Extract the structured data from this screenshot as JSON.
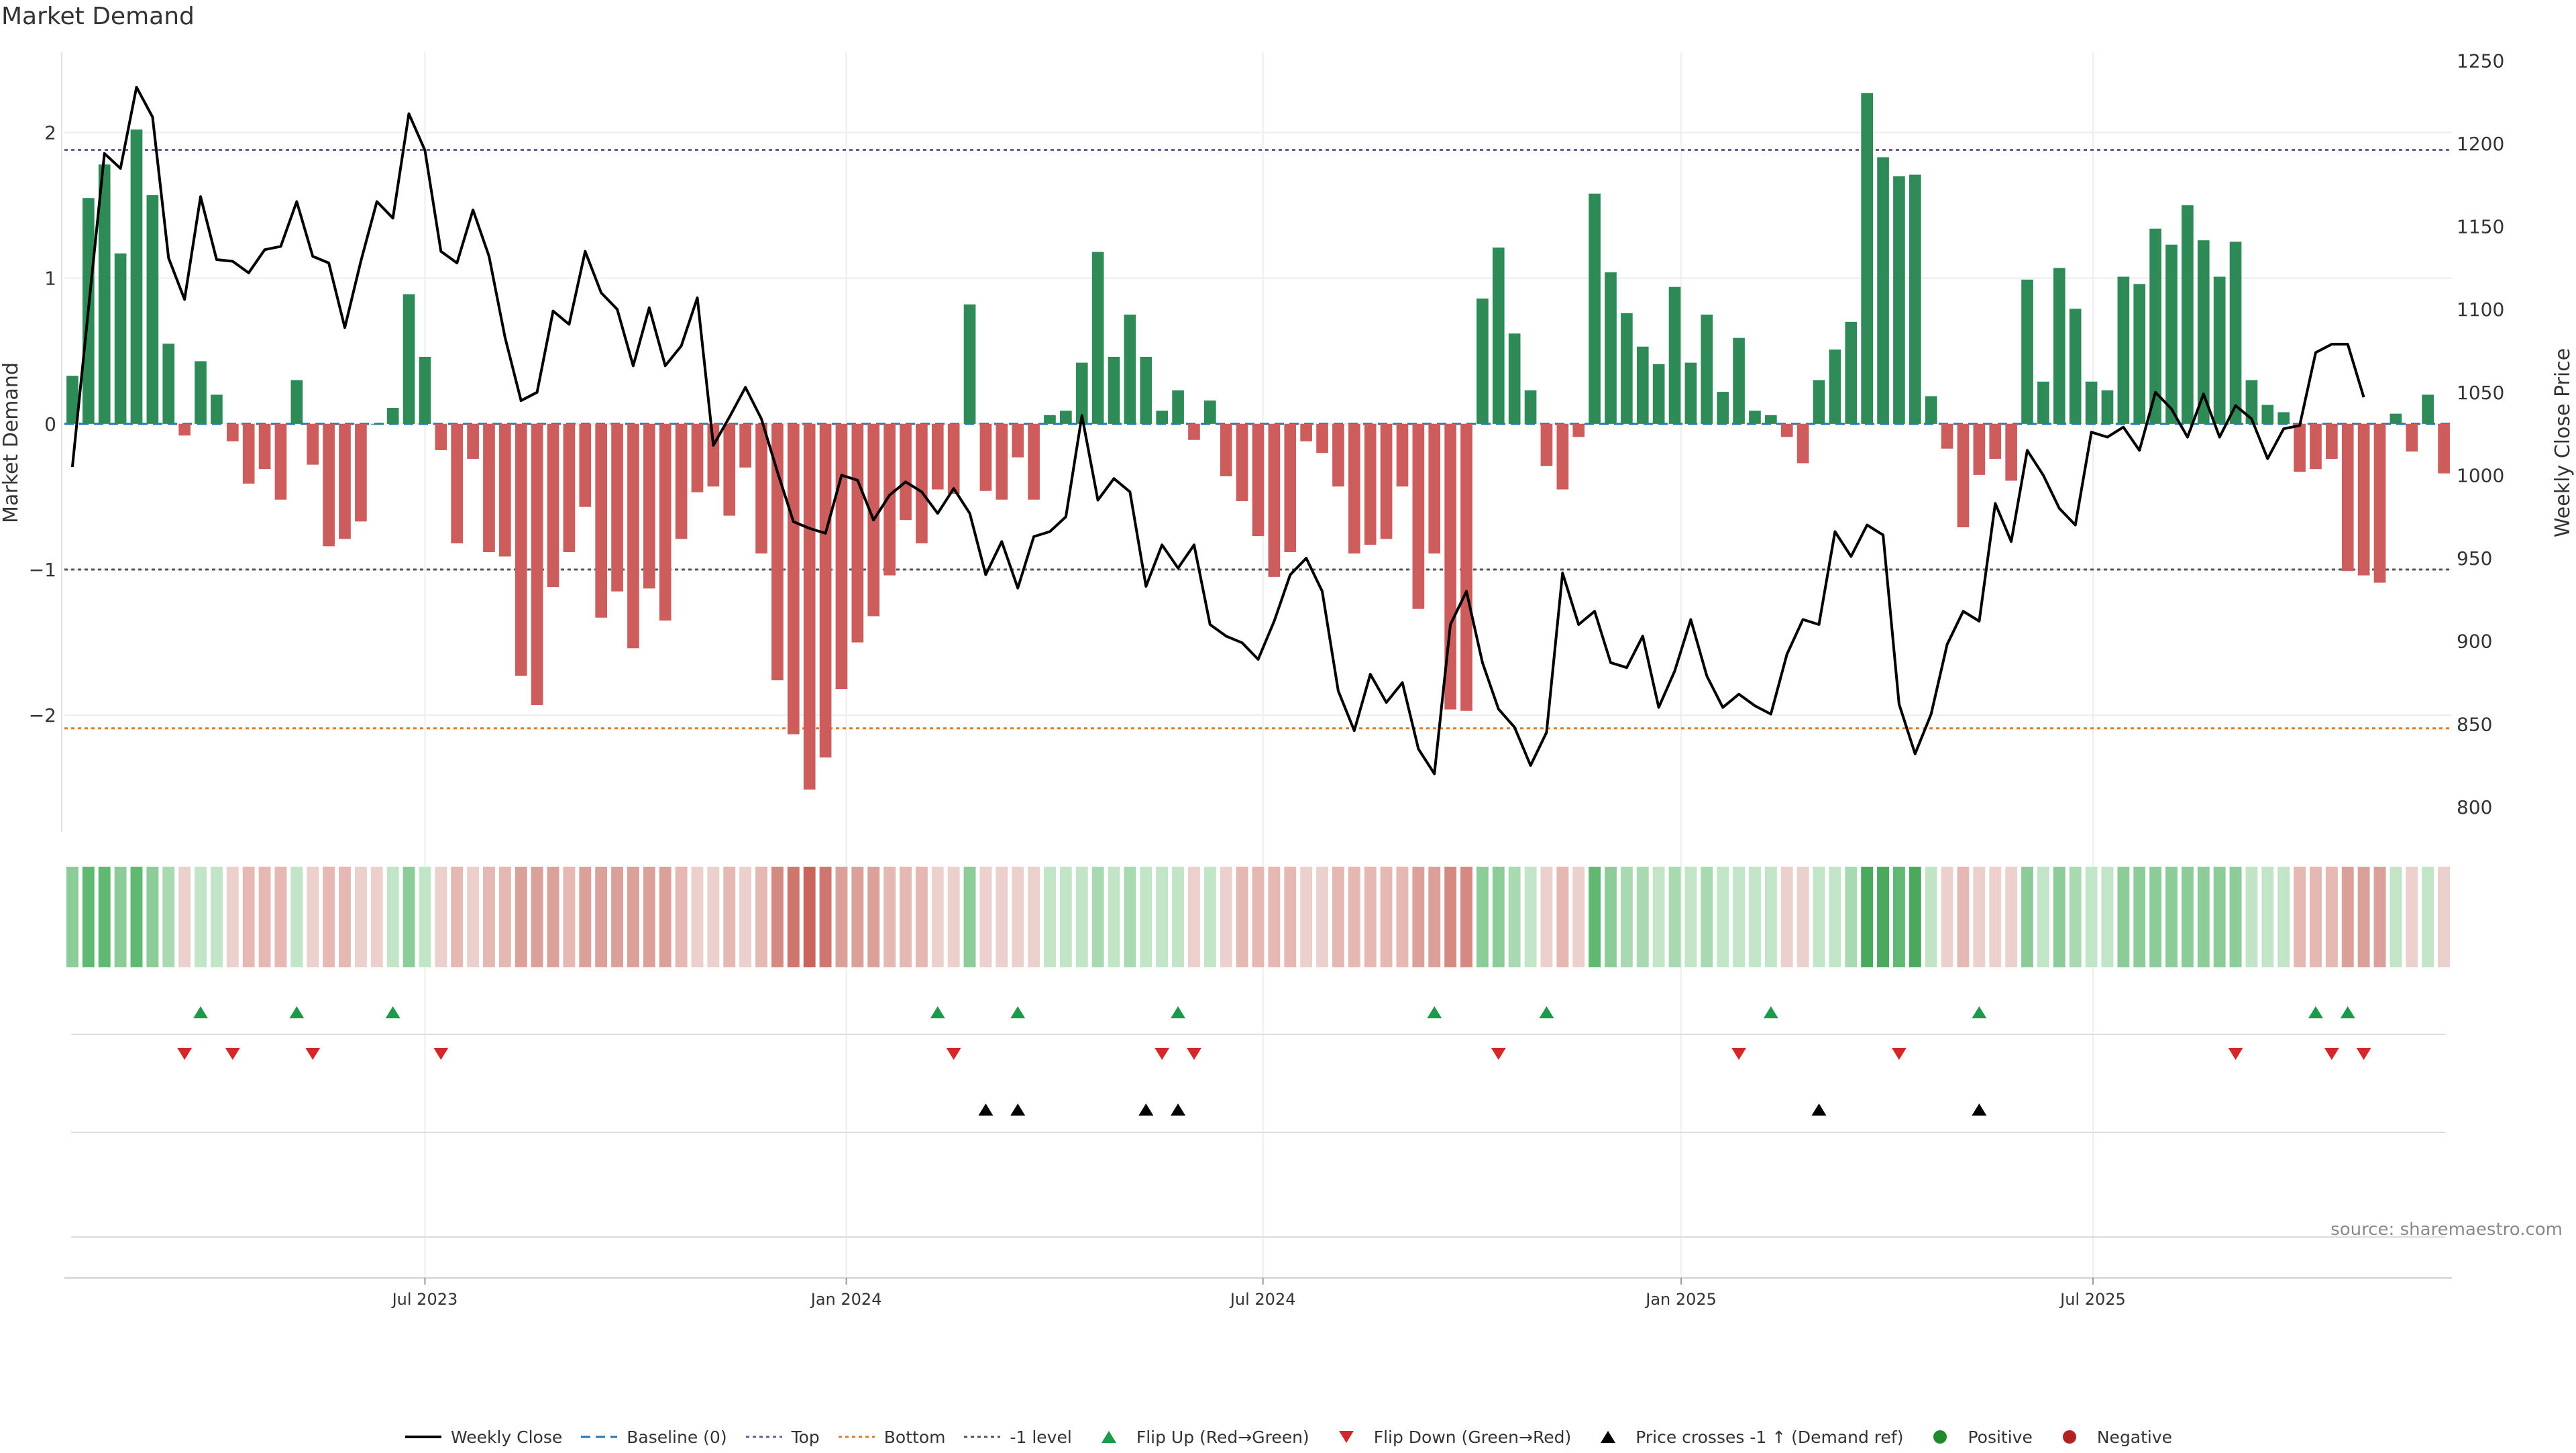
{
  "title": "Market Demand",
  "source": "source: sharemaestro.com",
  "colors": {
    "positive": "#2e8b57",
    "negative": "#cd5c5c",
    "price": "#000000",
    "top": "#6b5b9a",
    "bottom": "#e07b26",
    "minus1": "#555555",
    "baseline": "#1f77b4",
    "flip_up": "#1a9a4a",
    "flip_down": "#d62728",
    "cross": "#000000",
    "negative_dot": "#b22222",
    "positive_dot": "#1f8a2a"
  },
  "chart_data": {
    "type": "bar",
    "ylabel": "Market Demand",
    "y2label": "Weekly Close Price",
    "ylim": [
      -2.8,
      2.55
    ],
    "y2lim": [
      785,
      1255
    ],
    "yticks": [
      -2,
      -1,
      0,
      1,
      2
    ],
    "yticklabels": [
      "−2",
      "−1",
      "0",
      "1",
      "2"
    ],
    "y2ticks": [
      800,
      850,
      900,
      950,
      1000,
      1050,
      1100,
      1150,
      1200,
      1250
    ],
    "levels": {
      "top": 1.88,
      "bottom": -2.09,
      "minus1": -1.0,
      "baseline": 0
    },
    "x_ticks": [
      {
        "label": "Jul 2023",
        "index": 22
      },
      {
        "label": "Jan 2024",
        "index": 48.3
      },
      {
        "label": "Jul 2024",
        "index": 74.3
      },
      {
        "label": "Jan 2025",
        "index": 100.4
      },
      {
        "label": "Jul 2025",
        "index": 126.1
      }
    ],
    "demand": [
      0.33,
      1.55,
      1.78,
      1.17,
      2.02,
      1.57,
      0.55,
      -0.08,
      0.43,
      0.2,
      -0.12,
      -0.41,
      -0.31,
      -0.52,
      0.3,
      -0.28,
      -0.84,
      -0.79,
      -0.67,
      0.0,
      0.11,
      0.89,
      0.46,
      -0.18,
      -0.82,
      -0.24,
      -0.88,
      -0.91,
      -1.73,
      -1.93,
      -1.12,
      -0.88,
      -0.57,
      -1.33,
      -1.15,
      -1.54,
      -1.13,
      -1.35,
      -0.79,
      -0.47,
      -0.43,
      -0.63,
      -0.3,
      -0.89,
      -1.76,
      -2.13,
      -2.51,
      -2.29,
      -1.82,
      -1.5,
      -1.32,
      -1.04,
      -0.66,
      -0.82,
      -0.45,
      -0.48,
      0.82,
      -0.46,
      -0.52,
      -0.23,
      -0.52,
      0.06,
      0.09,
      0.42,
      1.18,
      0.46,
      0.75,
      0.46,
      0.09,
      0.23,
      -0.11,
      0.16,
      -0.36,
      -0.53,
      -0.77,
      -1.05,
      -0.88,
      -0.12,
      -0.2,
      -0.43,
      -0.89,
      -0.83,
      -0.79,
      -0.43,
      -1.27,
      -0.89,
      -1.96,
      -1.97,
      0.86,
      1.21,
      0.62,
      0.23,
      -0.29,
      -0.45,
      -0.09,
      1.58,
      1.04,
      0.76,
      0.53,
      0.41,
      0.94,
      0.42,
      0.75,
      0.22,
      0.59,
      0.09,
      0.06,
      -0.09,
      -0.27,
      0.3,
      0.51,
      0.7,
      2.27,
      1.83,
      1.7,
      1.71,
      0.19,
      -0.17,
      -0.71,
      -0.35,
      -0.24,
      -0.39,
      0.99,
      0.29,
      1.07,
      0.79,
      0.29,
      0.23,
      1.01,
      0.96,
      1.34,
      1.23,
      1.5,
      1.26,
      1.01,
      1.25,
      0.3,
      0.13,
      0.08,
      -0.33,
      -0.31,
      -0.24,
      -1.01,
      -1.04,
      -1.09,
      0.07,
      -0.19,
      0.2,
      -0.34
    ],
    "price": [
      1005,
      1100,
      1194,
      1185,
      1234,
      1216,
      1131,
      1106,
      1168,
      1130,
      1129,
      1122,
      1136,
      1138,
      1165,
      1132,
      1128,
      1089,
      1129,
      1165,
      1155,
      1218,
      1196,
      1135,
      1128,
      1160,
      1132,
      1083,
      1045,
      1050,
      1099,
      1091,
      1135,
      1110,
      1100,
      1066,
      1101,
      1066,
      1078,
      1107,
      1018,
      1035,
      1053,
      1034,
      1002,
      972,
      968,
      965,
      1000,
      997,
      973,
      988,
      996,
      990,
      977,
      992,
      977,
      940,
      960,
      932,
      963,
      966,
      975,
      1036,
      985,
      998,
      990,
      933,
      958,
      944,
      958,
      910,
      903,
      899,
      889,
      912,
      940,
      950,
      930,
      870,
      846,
      880,
      863,
      875,
      835,
      820,
      910,
      930,
      887,
      859,
      848,
      825,
      845,
      941,
      910,
      918,
      887,
      884,
      903,
      860,
      882,
      913,
      879,
      860,
      868,
      861,
      856,
      892,
      913,
      910,
      966,
      951,
      970,
      964,
      862,
      832,
      856,
      898,
      918,
      912,
      983,
      960,
      1015,
      1000,
      980,
      970,
      1026,
      1023,
      1029,
      1015,
      1050,
      1040,
      1023,
      1049,
      1023,
      1042,
      1034,
      1010,
      1028,
      1030,
      1074,
      1079,
      1079,
      1047
    ],
    "heat_colors": [
      "#8ccc99",
      "#61b873",
      "#61b873",
      "#8ccc99",
      "#61b873",
      "#8ccc99",
      "#a9d9b1",
      "#ecd0cd",
      "#c2e5c7",
      "#c2e5c7",
      "#ecd0cd",
      "#e5b8b4",
      "#e5b8b4",
      "#e5b8b4",
      "#c2e5c7",
      "#ecd0cd",
      "#e5b8b4",
      "#e5b8b4",
      "#ecd0cd",
      "#ecd0cd",
      "#c2e5c7",
      "#8ccc99",
      "#c2e5c7",
      "#ecd0cd",
      "#e5b8b4",
      "#ecd0cd",
      "#e5b8b4",
      "#e5b8b4",
      "#dca09a",
      "#dca09a",
      "#dca09a",
      "#e5b8b4",
      "#dca09a",
      "#dca09a",
      "#dca09a",
      "#dca09a",
      "#dca09a",
      "#dca09a",
      "#e5b8b4",
      "#ecd0cd",
      "#ecd0cd",
      "#e5b8b4",
      "#ecd0cd",
      "#e5b8b4",
      "#d48982",
      "#cf7670",
      "#c9645d",
      "#cf7670",
      "#dca09a",
      "#dca09a",
      "#dca09a",
      "#e5b8b4",
      "#e5b8b4",
      "#e5b8b4",
      "#ecd0cd",
      "#ecd0cd",
      "#8ccc99",
      "#ecd0cd",
      "#ecd0cd",
      "#ecd0cd",
      "#ecd0cd",
      "#c2e5c7",
      "#c2e5c7",
      "#c2e5c7",
      "#a9d9b1",
      "#c2e5c7",
      "#a9d9b1",
      "#c2e5c7",
      "#c2e5c7",
      "#c2e5c7",
      "#ecd0cd",
      "#c2e5c7",
      "#ecd0cd",
      "#e5b8b4",
      "#e5b8b4",
      "#e5b8b4",
      "#e5b8b4",
      "#ecd0cd",
      "#ecd0cd",
      "#e5b8b4",
      "#e5b8b4",
      "#e5b8b4",
      "#e5b8b4",
      "#e5b8b4",
      "#dca09a",
      "#dca09a",
      "#d48982",
      "#d48982",
      "#8ccc99",
      "#8ccc99",
      "#a9d9b1",
      "#c2e5c7",
      "#ecd0cd",
      "#e5b8b4",
      "#ecd0cd",
      "#61b873",
      "#8ccc99",
      "#a9d9b1",
      "#a9d9b1",
      "#c2e5c7",
      "#a9d9b1",
      "#c2e5c7",
      "#a9d9b1",
      "#c2e5c7",
      "#c2e5c7",
      "#c2e5c7",
      "#c2e5c7",
      "#ecd0cd",
      "#ecd0cd",
      "#c2e5c7",
      "#c2e5c7",
      "#a9d9b1",
      "#4aa85f",
      "#4aa85f",
      "#61b873",
      "#4aa85f",
      "#c2e5c7",
      "#ecd0cd",
      "#e5b8b4",
      "#ecd0cd",
      "#ecd0cd",
      "#ecd0cd",
      "#8ccc99",
      "#c2e5c7",
      "#8ccc99",
      "#a9d9b1",
      "#c2e5c7",
      "#c2e5c7",
      "#8ccc99",
      "#8ccc99",
      "#8ccc99",
      "#8ccc99",
      "#8ccc99",
      "#8ccc99",
      "#8ccc99",
      "#8ccc99",
      "#c2e5c7",
      "#c2e5c7",
      "#c2e5c7",
      "#e5b8b4",
      "#e5b8b4",
      "#e5b8b4",
      "#dca09a",
      "#dca09a",
      "#dca09a",
      "#c2e5c7",
      "#ecd0cd",
      "#c2e5c7",
      "#ecd0cd"
    ],
    "flip_up": [
      8,
      14,
      20,
      54,
      59,
      69,
      85,
      92,
      106,
      119,
      140,
      142
    ],
    "flip_down": [
      7,
      10,
      15,
      23,
      55,
      68,
      70,
      89,
      104,
      114,
      135,
      141,
      143
    ],
    "price_cross": [
      57,
      59,
      67,
      69,
      109,
      119
    ],
    "series_names": {
      "price": "Weekly Close",
      "baseline": "Baseline (0)",
      "top": "Top",
      "bottom": "Bottom",
      "minus1": "-1 level",
      "flip_up": "Flip Up (Red→Green)",
      "flip_down": "Flip Down (Green→Red)",
      "cross": "Price crosses -1 ↑ (Demand ref)",
      "positive": "Positive",
      "negative": "Negative"
    }
  },
  "legend": [
    {
      "key": "price",
      "label": "Weekly Close",
      "icon": "solid-line-icon"
    },
    {
      "key": "baseline",
      "label": "Baseline (0)",
      "icon": "dashed-line-icon"
    },
    {
      "key": "top",
      "label": "Top",
      "icon": "dotted-line-icon"
    },
    {
      "key": "bottom",
      "label": "Bottom",
      "icon": "dotted-line-icon"
    },
    {
      "key": "minus1",
      "label": "-1 level",
      "icon": "dotted-line-icon"
    },
    {
      "key": "flip_up",
      "label": "Flip Up (Red→Green)",
      "icon": "triangle-up-icon"
    },
    {
      "key": "flip_down",
      "label": "Flip Down (Green→Red)",
      "icon": "triangle-down-icon"
    },
    {
      "key": "cross",
      "label": "Price crosses -1 ↑ (Demand ref)",
      "icon": "triangle-up-icon"
    },
    {
      "key": "positive",
      "label": "Positive",
      "icon": "circle-icon"
    },
    {
      "key": "negative",
      "label": "Negative",
      "icon": "circle-icon"
    }
  ]
}
